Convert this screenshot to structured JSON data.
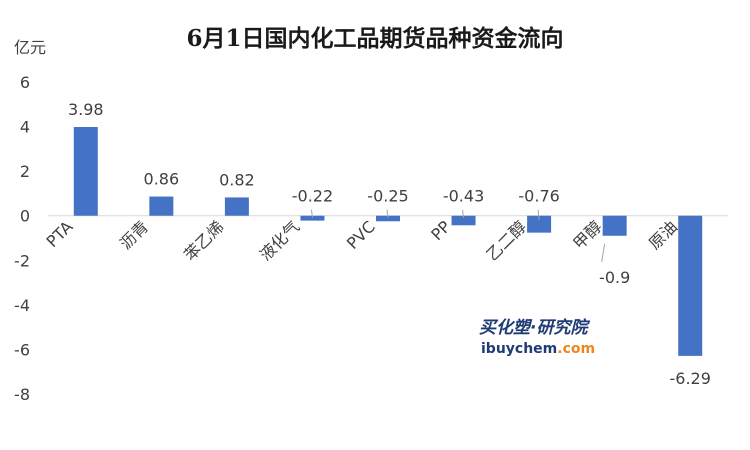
{
  "chart_data": {
    "type": "bar",
    "title": "6月1日国内化工品期货品种资金流向",
    "ylabel": "亿元",
    "categories": [
      "PTA",
      "沥青",
      "苯乙烯",
      "液化气",
      "PVC",
      "PP",
      "乙二醇",
      "甲醇",
      "原油"
    ],
    "values": [
      3.98,
      0.86,
      0.82,
      -0.22,
      -0.25,
      -0.43,
      -0.76,
      -0.9,
      -6.29
    ],
    "data_labels": [
      "3.98",
      "0.86",
      "0.82",
      "-0.22",
      "-0.25",
      "-0.43",
      "-0.76",
      "-0.9",
      "-6.29"
    ],
    "ylim": [
      -8,
      6
    ],
    "yticks": [
      6,
      4,
      2,
      0,
      -2,
      -4,
      -6,
      -8
    ],
    "grid": false,
    "legend": "none",
    "bar_color": "#4472C4"
  },
  "watermark": {
    "name": "买化塑·研究院",
    "url_part1": "ibuychem",
    "url_part2": ".com"
  },
  "colors": {
    "watermark_dark": "#1f3b73",
    "watermark_accent": "#f0851e"
  }
}
